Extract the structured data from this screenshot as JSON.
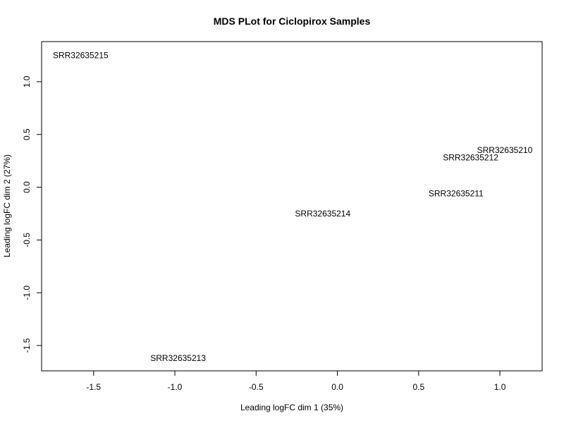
{
  "chart_data": {
    "type": "scatter",
    "title": "MDS PLot for Ciclopirox Samples",
    "xlabel": "Leading logFC dim 1 (35%)",
    "ylabel": "Leading logFC dim 2 (27%)",
    "xlim": [
      -1.82,
      1.26
    ],
    "ylim": [
      -1.74,
      1.38
    ],
    "xticks": [
      {
        "value": -1.5,
        "label": "-1.5"
      },
      {
        "value": -1.0,
        "label": "-1.0"
      },
      {
        "value": -0.5,
        "label": "-0.5"
      },
      {
        "value": 0.0,
        "label": "0.0"
      },
      {
        "value": 0.5,
        "label": "0.5"
      },
      {
        "value": 1.0,
        "label": "1.0"
      }
    ],
    "yticks": [
      {
        "value": -1.5,
        "label": "-1.5"
      },
      {
        "value": -1.0,
        "label": "-1.0"
      },
      {
        "value": -0.5,
        "label": "-0.5"
      },
      {
        "value": 0.0,
        "label": "0.0"
      },
      {
        "value": 0.5,
        "label": "0.5"
      },
      {
        "value": 1.0,
        "label": "1.0"
      }
    ],
    "points": [
      {
        "label": "SRR32635215",
        "x": -1.58,
        "y": 1.25
      },
      {
        "label": "SRR32635210",
        "x": 1.03,
        "y": 0.35
      },
      {
        "label": "SRR32635212",
        "x": 0.82,
        "y": 0.28
      },
      {
        "label": "SRR32635211",
        "x": 0.73,
        "y": -0.06
      },
      {
        "label": "SRR32635214",
        "x": -0.09,
        "y": -0.25
      },
      {
        "label": "SRR32635213",
        "x": -0.98,
        "y": -1.62
      }
    ],
    "grid": false,
    "legend": "none"
  }
}
